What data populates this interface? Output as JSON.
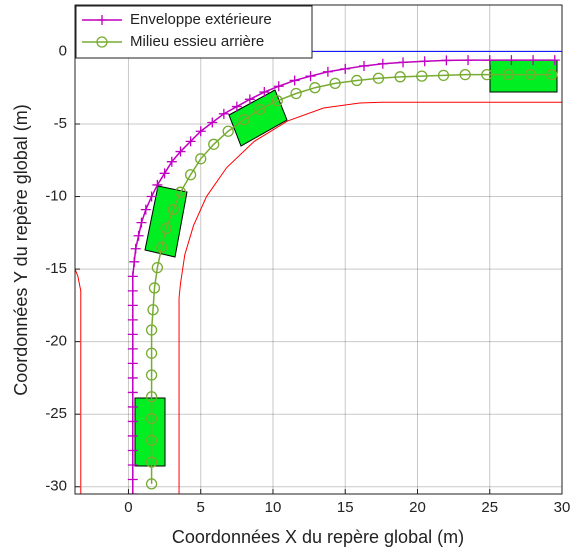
{
  "chart_data": {
    "type": "line",
    "xlabel": "Coordonnées X du repère global (m)",
    "ylabel": "Coordonnées Y du repère global (m)",
    "xlim": [
      -3.7,
      30
    ],
    "ylim": [
      -30.5,
      3.2
    ],
    "xticks": [
      0,
      5,
      10,
      15,
      20,
      25,
      30
    ],
    "yticks": [
      -30,
      -25,
      -20,
      -15,
      -10,
      -5,
      0
    ],
    "grid": true,
    "legend": "upper left",
    "series": [
      {
        "name": "Enveloppe extérieure",
        "color": "#c000c0",
        "marker": "plus",
        "x": [
          0.3,
          0.3,
          0.3,
          0.3,
          0.3,
          0.3,
          0.3,
          0.3,
          0.3,
          0.3,
          0.3,
          0.3,
          0.3,
          0.3,
          0.3,
          0.3,
          0.4,
          0.5,
          0.7,
          0.9,
          1.2,
          1.6,
          2.0,
          2.5,
          3.0,
          3.6,
          4.3,
          5.0,
          5.8,
          6.6,
          7.5,
          8.4,
          9.4,
          10.4,
          11.5,
          12.6,
          13.8,
          15.0,
          16.3,
          17.6,
          19.0,
          20.5,
          22,
          23.5,
          25,
          26.5,
          28,
          29.5
        ],
        "values": [
          -30.5,
          -29.5,
          -28.5,
          -27.5,
          -26.5,
          -25.5,
          -24.5,
          -23.5,
          -22.5,
          -21.5,
          -20.5,
          -19.5,
          -18.5,
          -17.5,
          -16.5,
          -15.5,
          -14.5,
          -13.6,
          -12.7,
          -11.8,
          -10.9,
          -10.0,
          -9.2,
          -8.4,
          -7.6,
          -6.9,
          -6.2,
          -5.5,
          -4.9,
          -4.3,
          -3.8,
          -3.3,
          -2.8,
          -2.4,
          -2.0,
          -1.7,
          -1.4,
          -1.2,
          -1.0,
          -0.85,
          -0.75,
          -0.68,
          -0.62,
          -0.6,
          -0.6,
          -0.6,
          -0.6,
          -0.6
        ]
      },
      {
        "name": "Milieu essieu arrière",
        "color": "#77ac30",
        "marker": "circle",
        "x": [
          1.6,
          1.6,
          1.6,
          1.6,
          1.6,
          1.6,
          1.6,
          1.6,
          1.7,
          1.8,
          2.0,
          2.3,
          2.6,
          3.1,
          3.6,
          4.3,
          5.0,
          5.9,
          6.9,
          8.0,
          9.1,
          10.3,
          11.6,
          12.9,
          14.3,
          15.8,
          17.3,
          18.8,
          20.3,
          21.8,
          23.3,
          24.8,
          26.3,
          27.8,
          29.3
        ],
        "values": [
          -29.8,
          -28.3,
          -26.8,
          -25.3,
          -23.8,
          -22.3,
          -20.8,
          -19.2,
          -17.8,
          -16.3,
          -14.9,
          -13.5,
          -12.2,
          -10.9,
          -9.7,
          -8.5,
          -7.4,
          -6.4,
          -5.5,
          -4.7,
          -4.0,
          -3.4,
          -2.9,
          -2.5,
          -2.2,
          -2.0,
          -1.85,
          -1.75,
          -1.7,
          -1.65,
          -1.6,
          -1.6,
          -1.6,
          -1.6,
          -1.6
        ]
      },
      {
        "color": "#ff0000",
        "x": [
          3.5,
          3.5,
          3.6,
          3.9,
          4.5,
          5.4,
          6.8,
          8.7,
          11,
          13.5,
          16,
          17.5,
          30
        ],
        "values": [
          -30.5,
          -17,
          -16,
          -14,
          -12,
          -10,
          -8,
          -6.2,
          -4.8,
          -3.9,
          -3.55,
          -3.5,
          -3.5
        ]
      },
      {
        "color": "#ff0000",
        "x": [
          -3.3,
          -3.3,
          -3.5,
          -3.7
        ],
        "values": [
          -30.5,
          -16.5,
          -15.5,
          -15
        ]
      },
      {
        "color": "#0000ff",
        "x": [
          12,
          30
        ],
        "values": [
          0,
          0
        ]
      }
    ]
  }
}
